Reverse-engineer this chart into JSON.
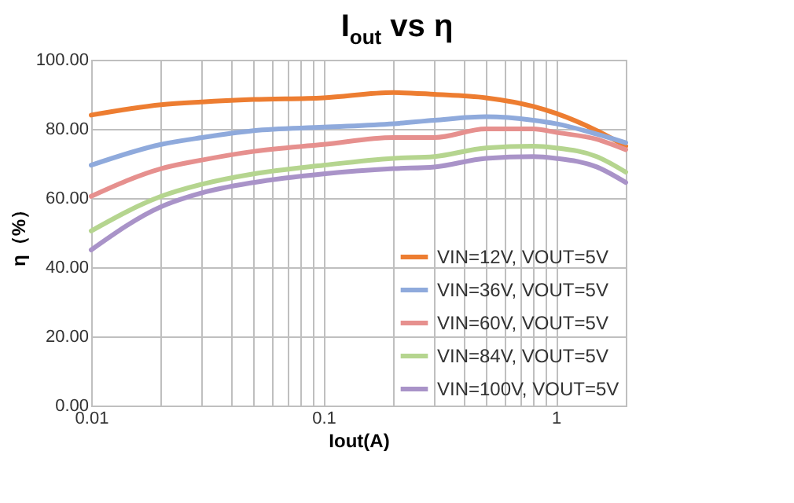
{
  "chart_data": {
    "type": "line",
    "title": "I$_{out}$ vs η",
    "xlabel": "Iout(A)",
    "ylabel": "η（%）",
    "log": "x",
    "x": [
      0.01,
      0.02,
      0.03,
      0.05,
      0.1,
      0.2,
      0.3,
      0.5,
      0.8,
      1,
      1.5,
      2
    ],
    "series": [
      {
        "name": "VIN=12V, VOUT=5V",
        "color": "#ed7d31",
        "values": [
          84,
          87,
          87.8,
          88.5,
          89,
          90.5,
          90,
          89,
          86.5,
          84.5,
          79.5,
          75
        ]
      },
      {
        "name": "VIN=36V, VOUT=5V",
        "color": "#8faadc",
        "values": [
          69.5,
          75.5,
          77.5,
          79.5,
          80.5,
          81.5,
          82.5,
          83.5,
          82.5,
          81.5,
          78.5,
          76
        ]
      },
      {
        "name": "VIN=60V, VOUT=5V",
        "color": "#e6908e",
        "values": [
          60.5,
          68.5,
          71,
          73.5,
          75.5,
          77.5,
          77.5,
          80,
          80,
          79,
          77,
          74
        ]
      },
      {
        "name": "VIN=84V, VOUT=5V",
        "color": "#b5d58f",
        "values": [
          50.5,
          60.5,
          64,
          67,
          69.5,
          71.5,
          72,
          74.5,
          75,
          74.5,
          72,
          67.5
        ]
      },
      {
        "name": "VIN=100V, VOUT=5V",
        "color": "#a993c8",
        "values": [
          45,
          57.5,
          61.5,
          64.5,
          67,
          68.5,
          69,
          71.5,
          72,
          71.5,
          69,
          64.5
        ]
      }
    ],
    "xlim": [
      0.01,
      2
    ],
    "xticks": [
      0.01,
      {
        "value": 0.02,
        "label": null
      },
      {
        "value": 0.03,
        "label": null
      },
      {
        "value": 0.04,
        "label": null
      },
      {
        "value": 0.05,
        "label": null
      },
      {
        "value": 0.06,
        "label": null
      },
      {
        "value": 0.07,
        "label": null
      },
      {
        "value": 0.08,
        "label": null
      },
      {
        "value": 0.09,
        "label": null
      },
      0.1,
      {
        "value": 0.2,
        "label": null
      },
      {
        "value": 0.3,
        "label": null
      },
      {
        "value": 0.4,
        "label": null
      },
      {
        "value": 0.5,
        "label": null
      },
      {
        "value": 0.6,
        "label": null
      },
      {
        "value": 0.7,
        "label": null
      },
      {
        "value": 0.8,
        "label": null
      },
      {
        "value": 0.9,
        "label": null
      },
      1,
      {
        "value": 2,
        "label": null
      }
    ],
    "ylim": [
      0,
      100
    ],
    "yticks": [
      {
        "value": 0,
        "label": "0.00"
      },
      {
        "value": 20,
        "label": "20.00"
      },
      {
        "value": 40,
        "label": "40.00"
      },
      {
        "value": 60,
        "label": "60.00"
      },
      {
        "value": 80,
        "label": "80.00"
      },
      {
        "value": 100,
        "label": "100.00"
      }
    ],
    "grid": true,
    "legend": "bottom right",
    "line_style": "solid",
    "marker": "none"
  }
}
